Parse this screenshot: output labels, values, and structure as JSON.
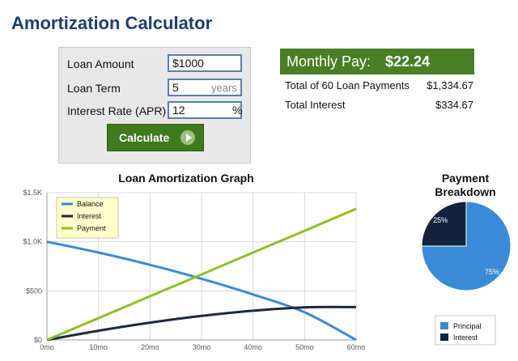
{
  "header": {
    "title": "Amortization Calculator"
  },
  "form": {
    "loan_amount": {
      "label": "Loan Amount",
      "value": "$1000"
    },
    "loan_term": {
      "label": "Loan Term",
      "value": "5",
      "unit": "years"
    },
    "interest_rate": {
      "label": "Interest Rate (APR)",
      "value": "12",
      "unit": "%"
    },
    "calculate_label": "Calculate"
  },
  "summary": {
    "monthly_label": "Monthly Pay:",
    "monthly_value": "$22.24",
    "total_payments_label": "Total of 60 Loan Payments",
    "total_payments_value": "$1,334.67",
    "total_interest_label": "Total Interest",
    "total_interest_value": "$334.67"
  },
  "colors": {
    "balance": "#3a8ad6",
    "interest": "#1b2a3c",
    "payment": "#8fbf26",
    "button": "#3f7a1e",
    "title": "#1e3f6e"
  },
  "chart_data": [
    {
      "type": "line",
      "title": "Loan Amortization Graph",
      "x_tick_labels": [
        "0mo",
        "10mo",
        "20mo",
        "30mo",
        "40mo",
        "50mo",
        "60mo"
      ],
      "y_tick_labels": [
        "$0",
        "$500",
        "$1.0K",
        "$1.5K"
      ],
      "xlim": [
        0,
        60
      ],
      "ylim": [
        0,
        1500
      ],
      "grid": true,
      "legend_position": "top-left",
      "series": [
        {
          "name": "Balance",
          "color": "#3a8ad6",
          "x": [
            0,
            10,
            20,
            30,
            40,
            50,
            60
          ],
          "y": [
            1000,
            890,
            765,
            623,
            463,
            282,
            0
          ]
        },
        {
          "name": "Interest",
          "color": "#1b2a3c",
          "x": [
            0,
            10,
            20,
            30,
            40,
            50,
            60
          ],
          "y": [
            0,
            94,
            176,
            245,
            298,
            332,
            335
          ]
        },
        {
          "name": "Payment",
          "color": "#8fbf26",
          "x": [
            0,
            10,
            20,
            30,
            40,
            50,
            60
          ],
          "y": [
            0,
            222,
            445,
            667,
            890,
            1112,
            1335
          ]
        }
      ]
    },
    {
      "type": "pie",
      "title": "Payment Breakdown",
      "legend_position": "bottom",
      "slices": [
        {
          "name": "Principal",
          "value": 75,
          "label": "75%",
          "color": "#3a8ad6"
        },
        {
          "name": "Interest",
          "value": 25,
          "label": "25%",
          "color": "#13233b"
        }
      ]
    }
  ]
}
